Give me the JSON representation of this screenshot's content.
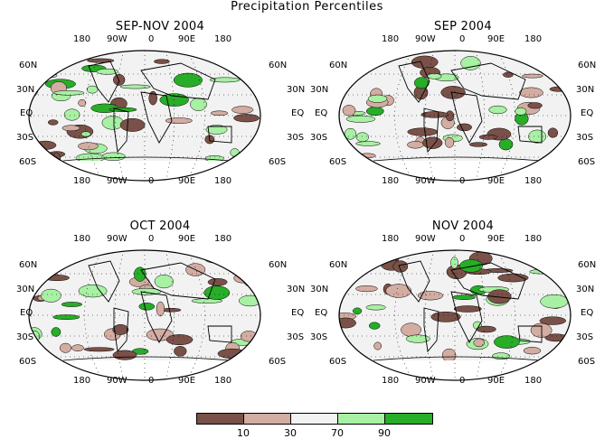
{
  "title": "Precipitation Percentiles",
  "panels": [
    {
      "title": "SEP-NOV 2004"
    },
    {
      "title": "SEP 2004"
    },
    {
      "title": "OCT 2004"
    },
    {
      "title": "NOV 2004"
    }
  ],
  "lon_labels": [
    "180",
    "90W",
    "0",
    "90E",
    "180"
  ],
  "lat_labels_left": [
    "60N",
    "30N",
    "EQ",
    "30S",
    "60S"
  ],
  "lat_labels_right": [
    "60N",
    "30N",
    "EQ",
    "30S",
    "60S"
  ],
  "colorbar": {
    "colors": [
      "#7a5148",
      "#d3aca2",
      "#f2f2f2",
      "#a8f0a3",
      "#27ad27"
    ],
    "tick_labels": [
      "10",
      "30",
      "70",
      "90"
    ]
  }
}
